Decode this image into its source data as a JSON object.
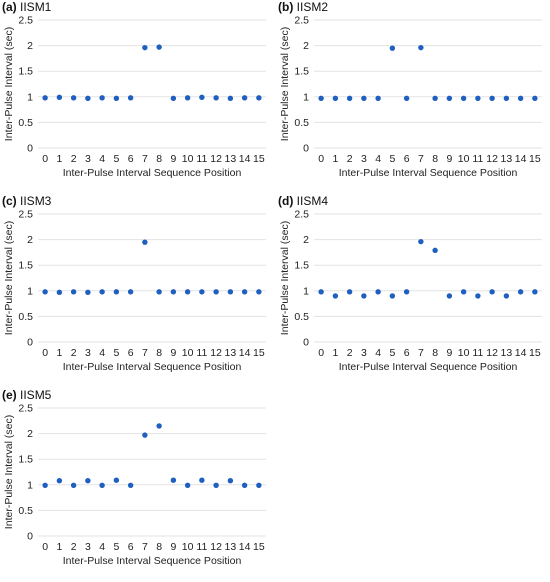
{
  "xlabel": "Inter-Pulse Interval Sequence Position",
  "ylabel": "Inter-Pulse Interval (sec)",
  "point_color": "#1f5fbf",
  "grid_color": "#e3e3e3",
  "panels": [
    {
      "label": "(a)",
      "title": "IISM1"
    },
    {
      "label": "(b)",
      "title": "IISM2"
    },
    {
      "label": "(c)",
      "title": "IISM3"
    },
    {
      "label": "(d)",
      "title": "IISM4"
    },
    {
      "label": "(e)",
      "title": "IISM5"
    }
  ],
  "chart_data": [
    {
      "type": "scatter",
      "title": "IISM1",
      "xlabel": "Inter-Pulse Interval Sequence Position",
      "ylabel": "Inter-Pulse Interval (sec)",
      "x": [
        0,
        1,
        2,
        3,
        4,
        5,
        6,
        7,
        8,
        9,
        10,
        11,
        12,
        13,
        14,
        15
      ],
      "y": [
        0.98,
        0.99,
        0.98,
        0.97,
        0.98,
        0.97,
        0.98,
        1.96,
        1.97,
        0.97,
        0.98,
        0.99,
        0.98,
        0.97,
        0.98,
        0.98
      ],
      "xticks": [
        "0",
        "1",
        "2",
        "3",
        "4",
        "5",
        "6",
        "7",
        "8",
        "9",
        "10",
        "11",
        "12",
        "13",
        "14",
        "15"
      ],
      "ylim": [
        0,
        2.5
      ],
      "yticks": [
        "0",
        "0.5",
        "1",
        "1.5",
        "2",
        "2.5"
      ],
      "grid": true
    },
    {
      "type": "scatter",
      "title": "IISM2",
      "xlabel": "Inter-Pulse Interval Sequence Position",
      "ylabel": "Inter-Pulse Interval (sec)",
      "x": [
        0,
        1,
        2,
        3,
        4,
        5,
        6,
        7,
        8,
        9,
        10,
        11,
        12,
        13,
        14,
        15
      ],
      "y": [
        0.97,
        0.97,
        0.97,
        0.97,
        0.97,
        1.95,
        0.97,
        1.96,
        0.97,
        0.97,
        0.97,
        0.97,
        0.97,
        0.97,
        0.97,
        0.97
      ],
      "xticks": [
        "0",
        "1",
        "2",
        "3",
        "4",
        "5",
        "6",
        "7",
        "8",
        "9",
        "10",
        "11",
        "12",
        "13",
        "14",
        "15"
      ],
      "ylim": [
        0,
        2.5
      ],
      "yticks": [
        "0",
        "0.5",
        "1",
        "1.5",
        "2",
        "2.5"
      ],
      "grid": true
    },
    {
      "type": "scatter",
      "title": "IISM3",
      "xlabel": "Inter-Pulse Interval Sequence Position",
      "ylabel": "Inter-Pulse Interval (sec)",
      "x": [
        0,
        1,
        2,
        3,
        4,
        5,
        6,
        7,
        8,
        9,
        10,
        11,
        12,
        13,
        14,
        15
      ],
      "y": [
        0.98,
        0.97,
        0.98,
        0.97,
        0.98,
        0.98,
        0.98,
        1.95,
        0.98,
        0.98,
        0.98,
        0.98,
        0.98,
        0.98,
        0.98,
        0.98
      ],
      "xticks": [
        "0",
        "1",
        "2",
        "3",
        "4",
        "5",
        "6",
        "7",
        "8",
        "9",
        "10",
        "11",
        "12",
        "13",
        "14",
        "15"
      ],
      "ylim": [
        0,
        2.5
      ],
      "yticks": [
        "0",
        "0.5",
        "1",
        "1.5",
        "2",
        "2.5"
      ],
      "grid": true
    },
    {
      "type": "scatter",
      "title": "IISM4",
      "xlabel": "Inter-Pulse Interval Sequence Position",
      "ylabel": "Inter-Pulse Interval (sec)",
      "x": [
        0,
        1,
        2,
        3,
        4,
        5,
        6,
        7,
        8,
        9,
        10,
        11,
        12,
        13,
        14,
        15
      ],
      "y": [
        0.98,
        0.9,
        0.98,
        0.9,
        0.98,
        0.9,
        0.98,
        1.96,
        1.79,
        0.9,
        0.98,
        0.9,
        0.98,
        0.9,
        0.98,
        0.98
      ],
      "xticks": [
        "0",
        "1",
        "2",
        "3",
        "4",
        "5",
        "6",
        "7",
        "8",
        "9",
        "10",
        "11",
        "12",
        "13",
        "14",
        "15"
      ],
      "ylim": [
        0,
        2.5
      ],
      "yticks": [
        "0",
        "0.5",
        "1",
        "1.5",
        "2",
        "2.5"
      ],
      "grid": true
    },
    {
      "type": "scatter",
      "title": "IISM5",
      "xlabel": "Inter-Pulse Interval Sequence Position",
      "ylabel": "Inter-Pulse Interval (sec)",
      "x": [
        0,
        1,
        2,
        3,
        4,
        5,
        6,
        7,
        8,
        9,
        10,
        11,
        12,
        13,
        14,
        15
      ],
      "y": [
        0.99,
        1.08,
        0.99,
        1.08,
        0.99,
        1.09,
        0.99,
        1.97,
        2.15,
        1.09,
        0.99,
        1.09,
        0.99,
        1.08,
        0.99,
        0.99
      ],
      "xticks": [
        "0",
        "1",
        "2",
        "3",
        "4",
        "5",
        "6",
        "7",
        "8",
        "9",
        "10",
        "11",
        "12",
        "13",
        "14",
        "15"
      ],
      "ylim": [
        0,
        2.5
      ],
      "yticks": [
        "0",
        "0.5",
        "1",
        "1.5",
        "2",
        "2.5"
      ],
      "grid": true
    }
  ]
}
